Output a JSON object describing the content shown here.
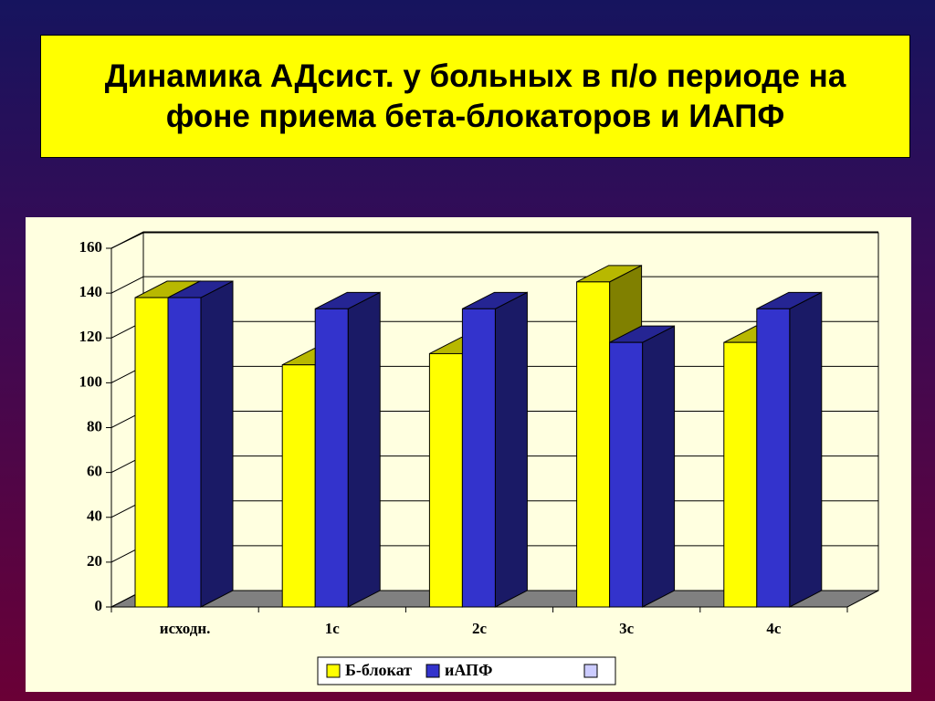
{
  "chart_data": {
    "type": "bar",
    "title": "Динамика АДсист. у больных в п/о периоде на фоне приема бета-блокаторов и ИАПФ",
    "categories": [
      "исходн.",
      "1с",
      "2с",
      "3с",
      "4с"
    ],
    "series": [
      {
        "name": "Б-блокат",
        "color": "#ffff00",
        "values": [
          138,
          108,
          113,
          145,
          118
        ]
      },
      {
        "name": "иАПФ",
        "color": "#3333cc",
        "values": [
          138,
          133,
          133,
          118,
          133
        ]
      }
    ],
    "ylim": [
      0,
      160
    ],
    "yticks": [
      0,
      20,
      40,
      60,
      80,
      100,
      120,
      140,
      160
    ],
    "grid": true
  }
}
